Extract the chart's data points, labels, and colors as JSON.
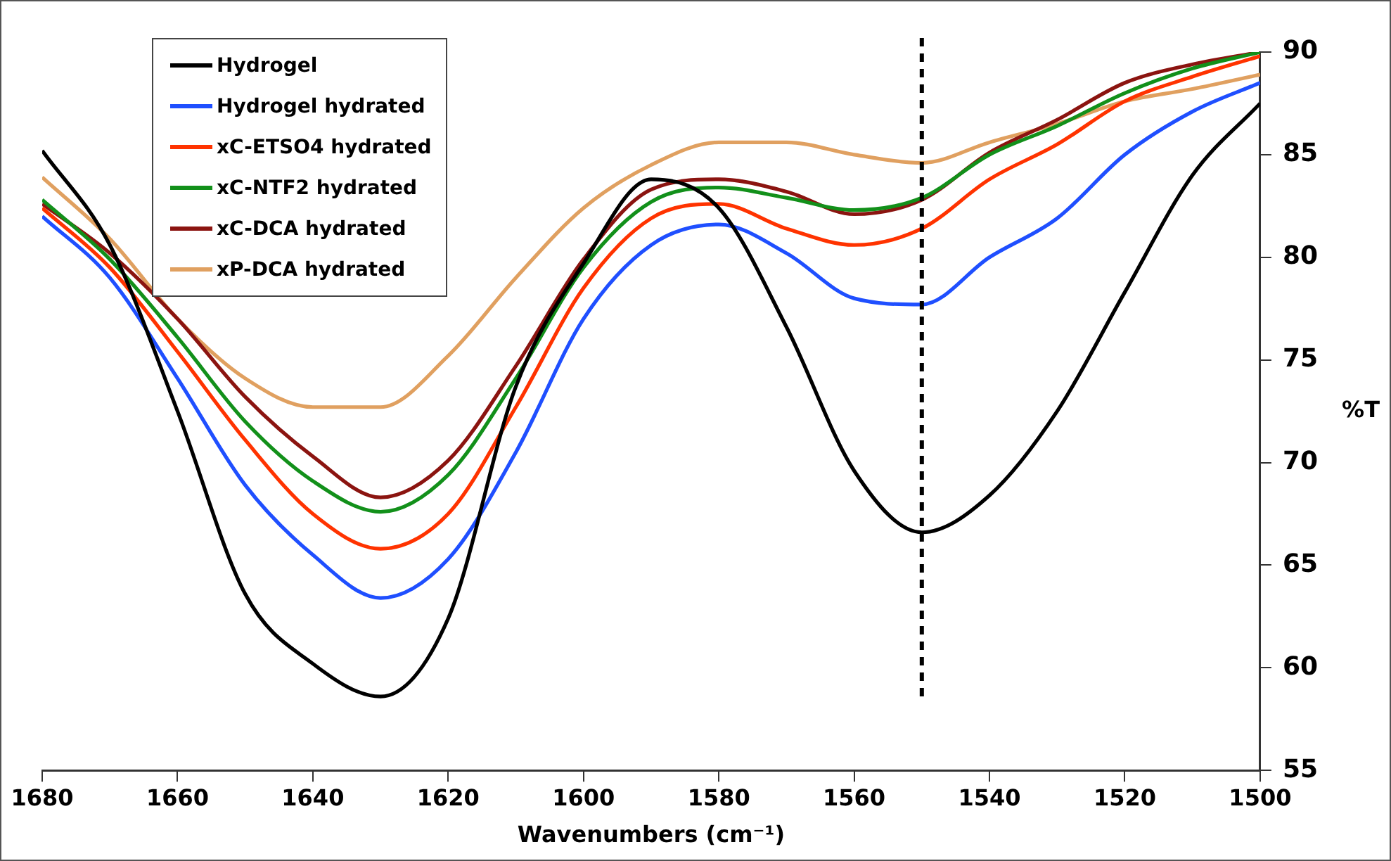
{
  "chart_data": {
    "type": "line",
    "xlabel": "Wavenumbers (cm⁻¹)",
    "ylabel": "%T",
    "x": [
      1680,
      1670,
      1660,
      1650,
      1640,
      1630,
      1620,
      1610,
      1600,
      1590,
      1580,
      1570,
      1560,
      1550,
      1540,
      1530,
      1520,
      1510,
      1500
    ],
    "xlim": [
      1680,
      1500
    ],
    "xticks": [
      1680,
      1660,
      1640,
      1620,
      1600,
      1580,
      1560,
      1540,
      1520,
      1500
    ],
    "ylim": [
      55,
      90
    ],
    "yticks": [
      55,
      60,
      65,
      70,
      75,
      80,
      85,
      90
    ],
    "series": [
      {
        "name": "Hydrogel",
        "color": "#000000",
        "values": [
          85.2,
          80.6,
          72.5,
          63.6,
          60.2,
          58.6,
          62.4,
          73.7,
          79.7,
          83.8,
          82.4,
          76.6,
          69.6,
          66.6,
          68.4,
          72.5,
          78.3,
          84.0,
          87.5
        ]
      },
      {
        "name": "Hydrogel hydrated",
        "color": "#1f4fff",
        "values": [
          82.0,
          79.0,
          74.1,
          68.9,
          65.5,
          63.4,
          65.3,
          70.5,
          77.0,
          80.6,
          81.6,
          80.2,
          78.0,
          77.7,
          80.0,
          81.9,
          85.0,
          87.1,
          88.5
        ]
      },
      {
        "name": "xC-ETSO4 hydrated",
        "color": "#ff3300",
        "values": [
          82.4,
          79.5,
          75.4,
          71.1,
          67.5,
          65.8,
          67.5,
          72.7,
          78.5,
          81.9,
          82.6,
          81.4,
          80.6,
          81.4,
          83.8,
          85.5,
          87.6,
          88.8,
          89.8
        ]
      },
      {
        "name": "xC-NTF2 hydrated",
        "color": "#12901a",
        "values": [
          82.8,
          79.9,
          76.1,
          72.0,
          69.1,
          67.6,
          69.4,
          74.1,
          79.5,
          82.7,
          83.4,
          82.9,
          82.3,
          82.9,
          85.0,
          86.4,
          88.0,
          89.2,
          90.0
        ]
      },
      {
        "name": "xC-DCA hydrated",
        "color": "#8b1410",
        "values": [
          82.6,
          80.2,
          77.0,
          73.2,
          70.3,
          68.3,
          70.1,
          74.7,
          79.9,
          83.3,
          83.8,
          83.2,
          82.1,
          82.8,
          85.1,
          86.7,
          88.5,
          89.4,
          90.0
        ]
      },
      {
        "name": "xP-DCA hydrated",
        "color": "#e0a060",
        "values": [
          83.9,
          80.9,
          77.0,
          74.1,
          72.7,
          72.7,
          75.2,
          79.0,
          82.4,
          84.5,
          85.6,
          85.6,
          85.0,
          84.6,
          85.6,
          86.5,
          87.6,
          88.2,
          88.9
        ]
      }
    ],
    "ref_lines": [
      {
        "axis": "x",
        "value": 1550,
        "color": "#000000",
        "line_style": "dashed"
      }
    ],
    "legend": "top left",
    "grid": false,
    "marker": "none",
    "line_style": "solid"
  }
}
